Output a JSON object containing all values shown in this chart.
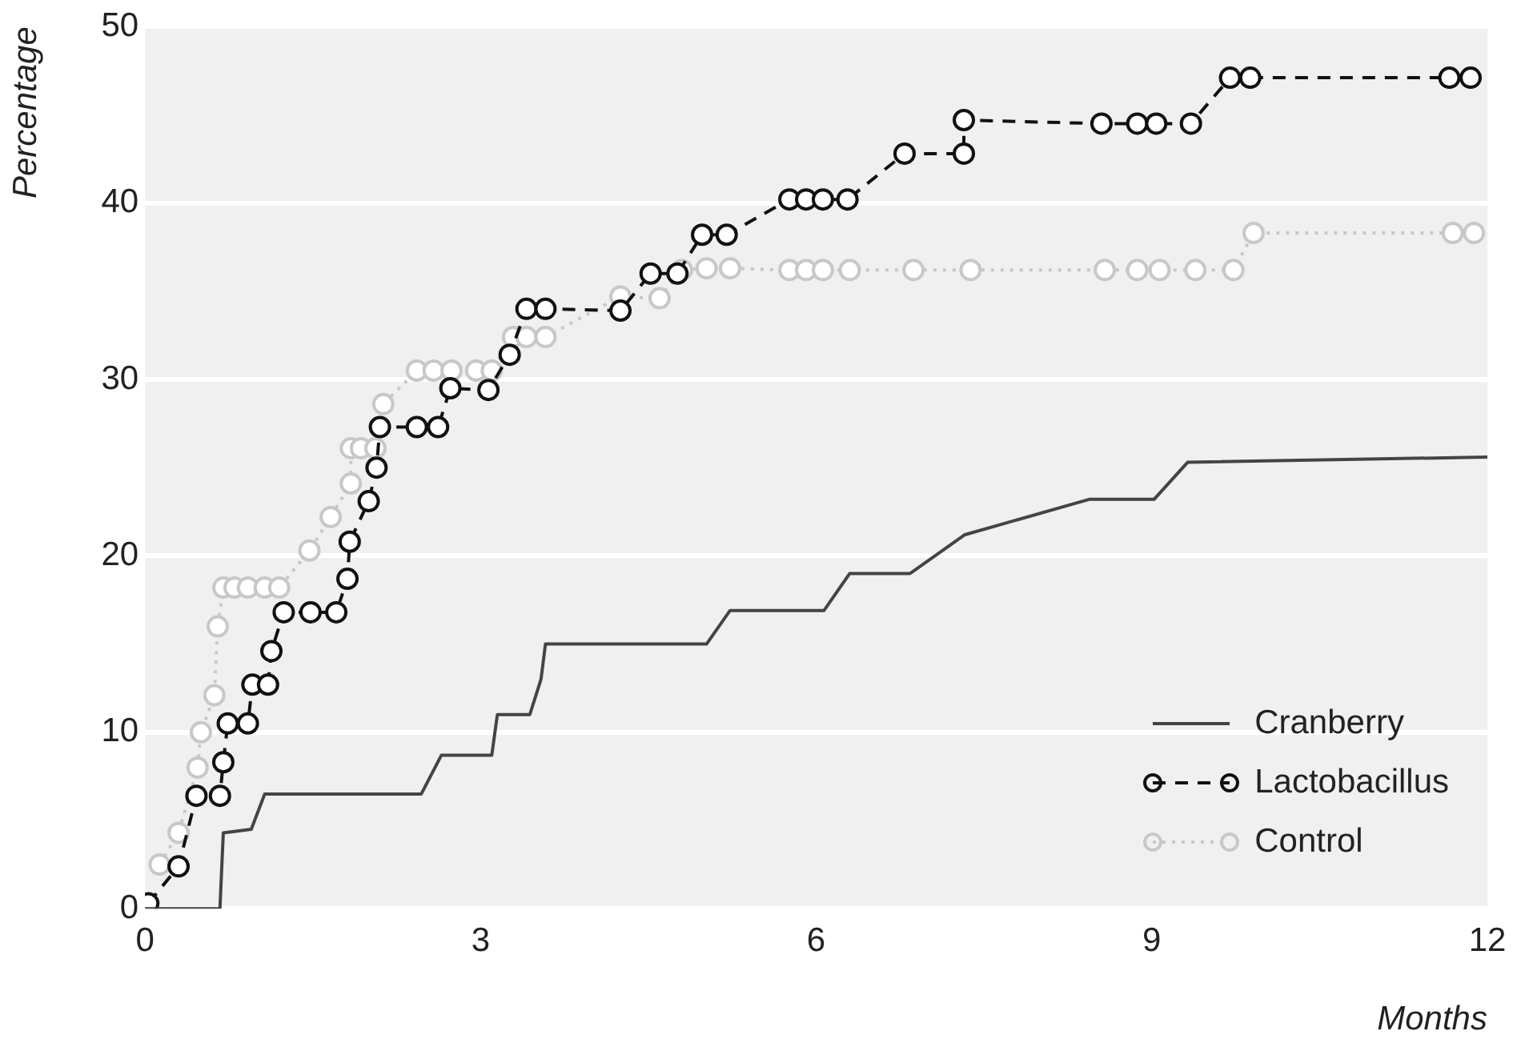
{
  "chart_data": {
    "type": "line",
    "xlabel": "Months",
    "ylabel": "Percentage",
    "xlim": [
      0,
      12
    ],
    "xticks": [
      0,
      3,
      6,
      9,
      12
    ],
    "ylim": [
      0,
      50
    ],
    "yticks": [
      0,
      10,
      20,
      30,
      40,
      50
    ],
    "grid": "y",
    "legend": "bottom right",
    "series": [
      {
        "name": "Cranberry",
        "color": "#444444",
        "marker": "none",
        "line_style": "solid",
        "x": [
          0,
          0.67,
          0.7,
          0.95,
          1.07,
          2.47,
          2.65,
          3.1,
          3.15,
          3.44,
          3.54,
          3.58,
          5.02,
          5.23,
          6.07,
          6.3,
          6.84,
          7.33,
          8.44,
          9.02,
          9.32,
          12
        ],
        "values": [
          0,
          0,
          4.3,
          4.5,
          6.5,
          6.5,
          8.7,
          8.7,
          11,
          11,
          13,
          15,
          15,
          16.9,
          16.9,
          19,
          19,
          21.2,
          23.2,
          23.2,
          25.3,
          25.6
        ]
      },
      {
        "name": "Lactobacillus",
        "color": "#111111",
        "marker": "circle",
        "line_style": "dashed",
        "x": [
          0.03,
          0.3,
          0.46,
          0.67,
          0.7,
          0.74,
          0.92,
          0.96,
          1.1,
          1.13,
          1.24,
          1.48,
          1.71,
          1.81,
          1.83,
          2.0,
          2.07,
          2.1,
          2.43,
          2.62,
          2.73,
          3.07,
          3.26,
          3.41,
          3.58,
          4.25,
          4.52,
          4.76,
          4.98,
          5.2,
          5.76,
          5.91,
          6.06,
          6.28,
          6.79,
          7.32,
          7.32,
          8.55,
          8.87,
          9.04,
          9.35,
          9.7,
          9.88,
          11.66,
          11.85
        ],
        "values": [
          0.3,
          2.4,
          6.4,
          6.4,
          8.3,
          10.5,
          10.5,
          12.7,
          12.7,
          14.6,
          16.8,
          16.8,
          16.8,
          18.7,
          20.8,
          23.1,
          25,
          27.3,
          27.3,
          27.3,
          29.5,
          29.4,
          31.4,
          34,
          34,
          33.9,
          36,
          36,
          38.2,
          38.2,
          40.2,
          40.2,
          40.2,
          40.2,
          42.8,
          42.8,
          44.7,
          44.5,
          44.5,
          44.5,
          44.5,
          47.1,
          47.1,
          47.1,
          47.1
        ]
      },
      {
        "name": "Control",
        "color": "#c8c8c8",
        "marker": "circle",
        "line_style": "dotted",
        "x": [
          0.13,
          0.3,
          0.47,
          0.5,
          0.62,
          0.65,
          0.7,
          0.8,
          0.92,
          1.07,
          1.2,
          1.47,
          1.66,
          1.84,
          1.84,
          1.93,
          2.06,
          2.13,
          2.43,
          2.58,
          2.74,
          2.96,
          3.1,
          3.29,
          3.41,
          3.58,
          4.25,
          4.6,
          4.8,
          5.02,
          5.23,
          5.76,
          5.91,
          6.06,
          6.3,
          6.87,
          7.38,
          8.58,
          8.87,
          9.07,
          9.39,
          9.73,
          9.91,
          11.69,
          11.88
        ],
        "values": [
          2.5,
          4.3,
          8,
          10,
          12.1,
          16,
          18.2,
          18.2,
          18.2,
          18.2,
          18.2,
          20.3,
          22.2,
          24.1,
          26.1,
          26.1,
          26.1,
          28.6,
          30.5,
          30.5,
          30.5,
          30.5,
          30.5,
          32.4,
          32.4,
          32.4,
          34.7,
          34.6,
          36.2,
          36.3,
          36.3,
          36.2,
          36.2,
          36.2,
          36.2,
          36.2,
          36.2,
          36.2,
          36.2,
          36.2,
          36.2,
          36.2,
          38.3,
          38.3,
          38.3
        ]
      }
    ]
  }
}
